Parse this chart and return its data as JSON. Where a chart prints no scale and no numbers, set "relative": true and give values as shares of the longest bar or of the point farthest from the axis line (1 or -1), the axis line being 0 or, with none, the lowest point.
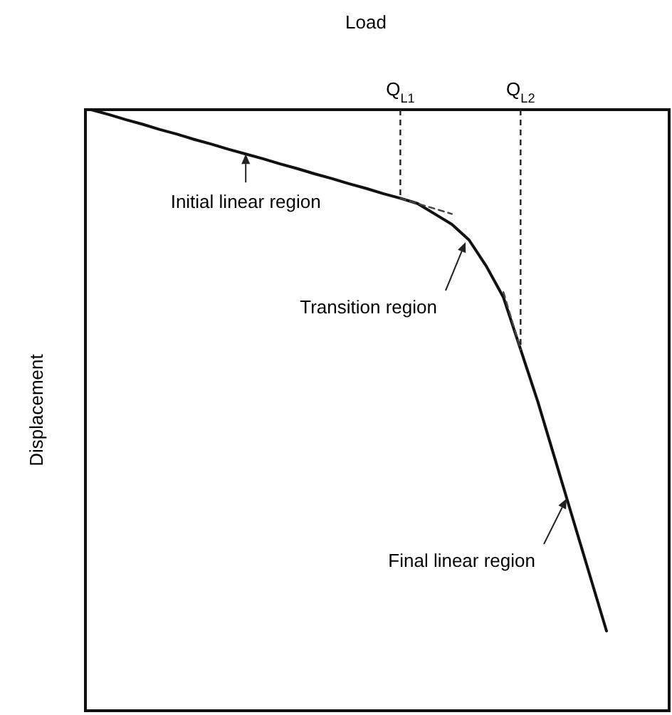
{
  "chart_data": {
    "type": "line",
    "xlabel": "Load",
    "ylabel": "Displacement",
    "relative": true,
    "categories": [
      null,
      null,
      null,
      null,
      null,
      null,
      null,
      null,
      null,
      null,
      null,
      null,
      null,
      null,
      null,
      null,
      null,
      null,
      "Q$_{L1}$",
      null,
      null,
      null,
      null,
      null,
      null,
      "Q$_{L2}$",
      null,
      null,
      null,
      null,
      null
    ],
    "series": [
      {
        "color": "#111111",
        "values": [
          0,
          -0.009,
          -0.019,
          -0.028,
          -0.038,
          -0.047,
          -0.057,
          -0.066,
          -0.076,
          -0.085,
          -0.094,
          -0.104,
          -0.113,
          -0.123,
          -0.132,
          -0.142,
          -0.151,
          -0.161,
          -0.17,
          -0.18,
          -0.2,
          -0.22,
          -0.25,
          -0.3,
          -0.36,
          -0.46,
          -0.56,
          -0.67,
          -0.78,
          -0.89,
          -1
        ]
      },
      {
        "type": "line",
        "line_style": "dashed",
        "color": "#444444",
        "values": [
          null,
          null,
          null,
          null,
          null,
          null,
          null,
          null,
          null,
          null,
          null,
          null,
          null,
          null,
          null,
          null,
          null,
          null,
          -0.17,
          -0.18,
          -0.19,
          -0.2,
          null,
          null,
          null,
          null,
          null,
          null,
          null,
          null,
          null
        ]
      },
      {
        "type": "line",
        "line_style": "dashed",
        "color": "#444444",
        "values": [
          null,
          null,
          null,
          null,
          null,
          null,
          null,
          null,
          null,
          null,
          null,
          null,
          null,
          null,
          null,
          null,
          null,
          null,
          null,
          null,
          null,
          null,
          null,
          null,
          -0.35,
          -0.46,
          null,
          null,
          null,
          null,
          null
        ]
      }
    ],
    "ref_lines": [
      {
        "axis": "x",
        "value": "Q$_{L1}$",
        "line_style": "dashed"
      },
      {
        "axis": "x",
        "value": "Q$_{L2}$",
        "line_style": "dashed"
      }
    ],
    "annotations": [
      {
        "text": "Initial linear region",
        "y": -0.085
      },
      "Transition region",
      "Final linear region"
    ]
  }
}
